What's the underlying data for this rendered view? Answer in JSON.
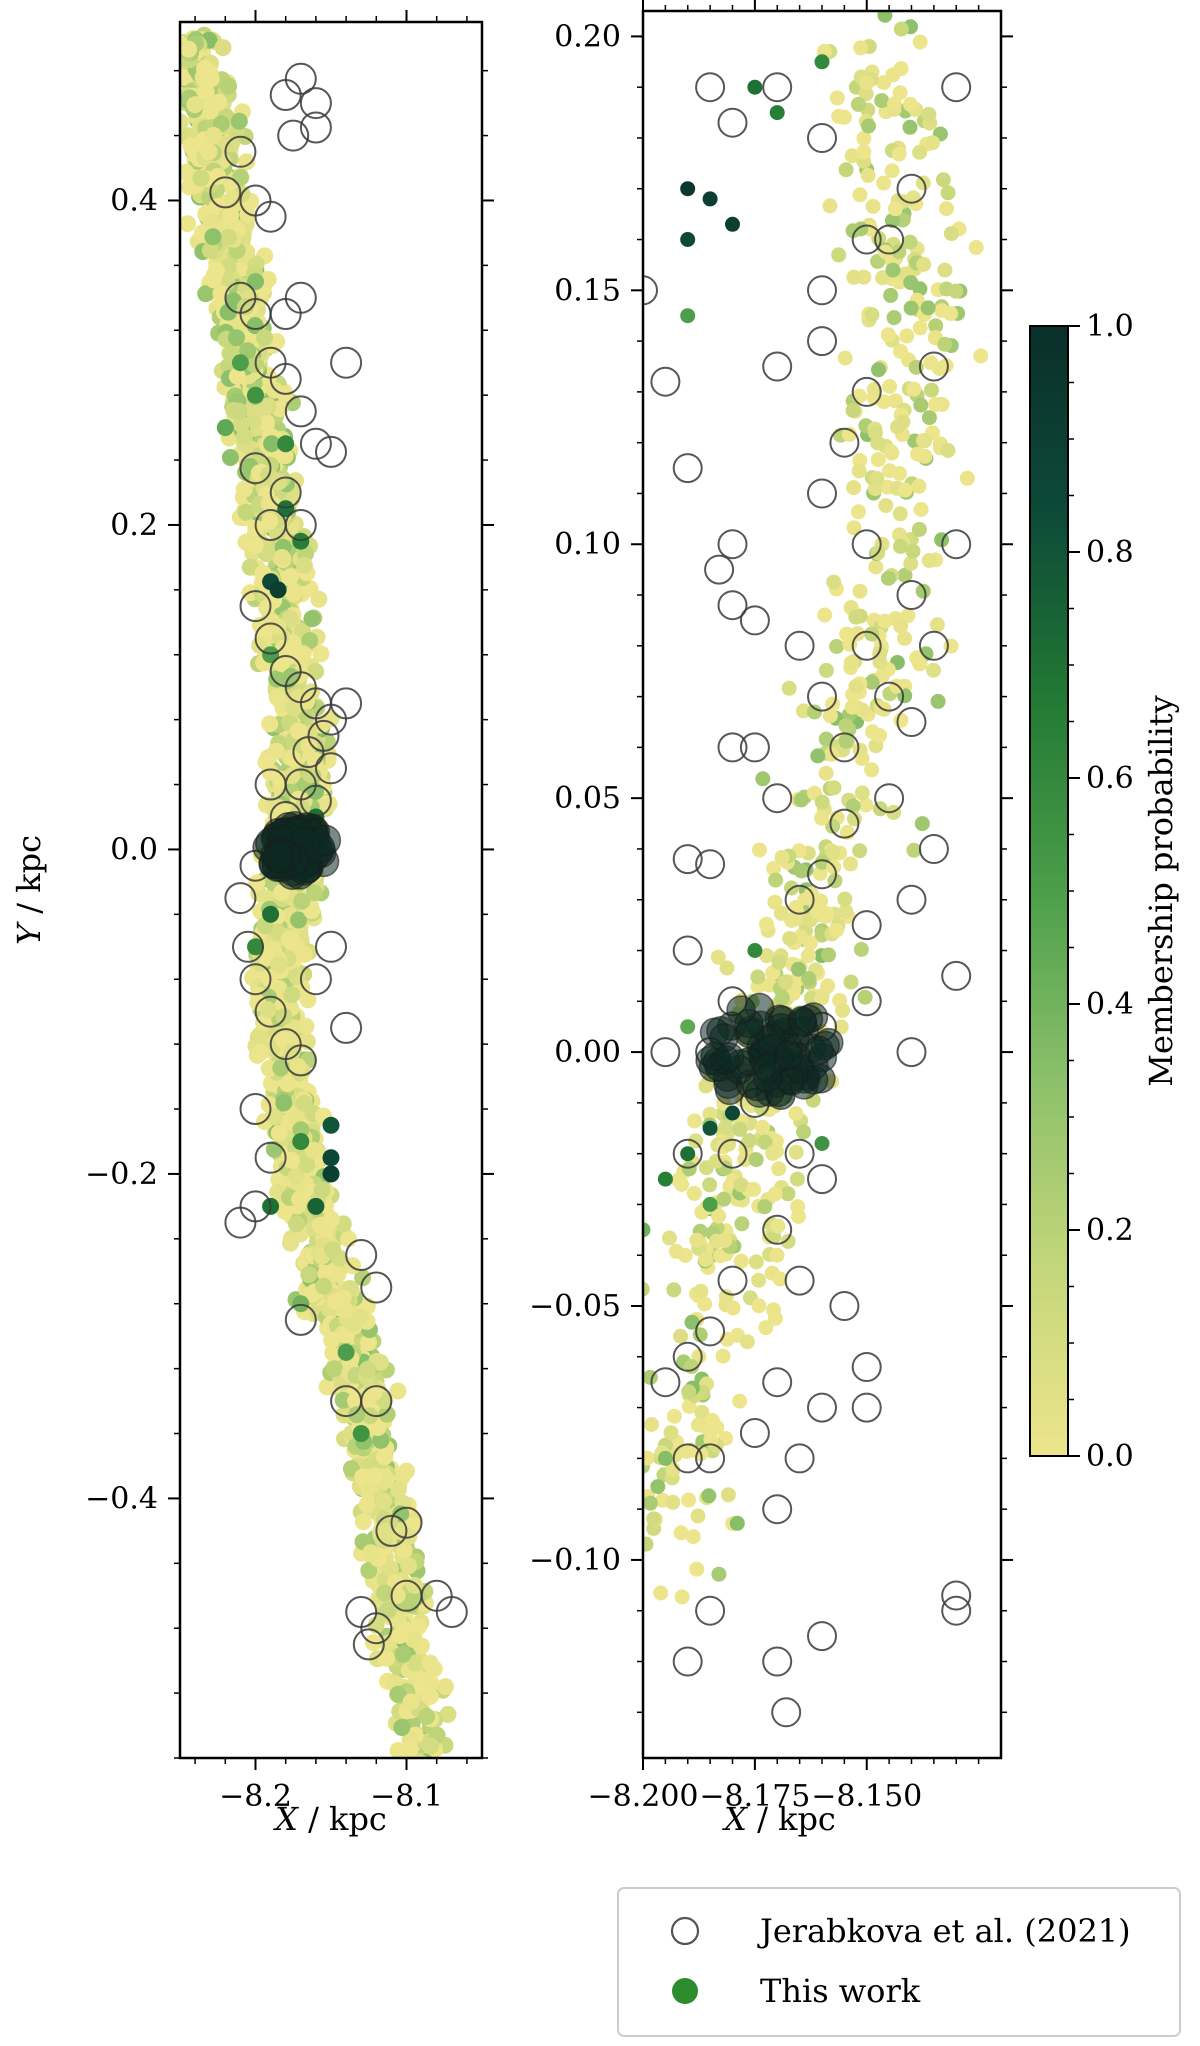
{
  "chart_data": [
    {
      "type": "scatter",
      "panel": "left",
      "xlabel_var": "X",
      "xlabel_unit": " / kpc",
      "ylabel_var": "Y",
      "ylabel_unit": " / kpc",
      "xlim": [
        -8.25,
        -8.05
      ],
      "ylim": [
        -0.56,
        0.51
      ],
      "xticks": [
        -8.2,
        -8.1
      ],
      "xtick_labels": [
        "−8.2",
        "−8.1"
      ],
      "yticks": [
        -0.4,
        -0.2,
        0.0,
        0.2,
        0.4
      ],
      "ytick_labels": [
        "−0.4",
        "−0.2",
        "0.0",
        "0.2",
        "0.4"
      ],
      "grid": false,
      "spine": [
        [
          -8.24,
          0.5
        ],
        [
          -8.22,
          0.38
        ],
        [
          -8.2,
          0.28
        ],
        [
          -8.185,
          0.18
        ],
        [
          -8.17,
          0.07
        ],
        [
          -8.175,
          0.0
        ],
        [
          -8.185,
          -0.08
        ],
        [
          -8.17,
          -0.2
        ],
        [
          -8.14,
          -0.3
        ],
        [
          -8.11,
          -0.42
        ],
        [
          -8.09,
          -0.56
        ]
      ],
      "series": [
        {
          "name": "Jerabkova et al. (2021)",
          "points": [
            [
              -8.17,
              0.475
            ],
            [
              -8.18,
              0.465
            ],
            [
              -8.16,
              0.46
            ],
            [
              -8.175,
              0.44
            ],
            [
              -8.16,
              0.445
            ],
            [
              -8.21,
              0.43
            ],
            [
              -8.22,
              0.405
            ],
            [
              -8.2,
              0.4
            ],
            [
              -8.19,
              0.39
            ],
            [
              -8.21,
              0.34
            ],
            [
              -8.2,
              0.33
            ],
            [
              -8.18,
              0.33
            ],
            [
              -8.17,
              0.34
            ],
            [
              -8.14,
              0.3
            ],
            [
              -8.19,
              0.3
            ],
            [
              -8.18,
              0.29
            ],
            [
              -8.17,
              0.27
            ],
            [
              -8.16,
              0.25
            ],
            [
              -8.15,
              0.245
            ],
            [
              -8.2,
              0.235
            ],
            [
              -8.18,
              0.22
            ],
            [
              -8.19,
              0.2
            ],
            [
              -8.17,
              0.2
            ],
            [
              -8.2,
              0.15
            ],
            [
              -8.19,
              0.13
            ],
            [
              -8.18,
              0.11
            ],
            [
              -8.17,
              0.1
            ],
            [
              -8.16,
              0.09
            ],
            [
              -8.15,
              0.08
            ],
            [
              -8.14,
              0.09
            ],
            [
              -8.155,
              0.07
            ],
            [
              -8.165,
              0.06
            ],
            [
              -8.15,
              0.05
            ],
            [
              -8.17,
              0.04
            ],
            [
              -8.16,
              0.03
            ],
            [
              -8.18,
              0.02
            ],
            [
              -8.19,
              0.04
            ],
            [
              -8.2,
              -0.01
            ],
            [
              -8.21,
              -0.03
            ],
            [
              -8.205,
              -0.06
            ],
            [
              -8.2,
              -0.08
            ],
            [
              -8.19,
              -0.1
            ],
            [
              -8.18,
              -0.12
            ],
            [
              -8.17,
              -0.13
            ],
            [
              -8.16,
              -0.08
            ],
            [
              -8.15,
              -0.06
            ],
            [
              -8.14,
              -0.11
            ],
            [
              -8.2,
              -0.16
            ],
            [
              -8.19,
              -0.19
            ],
            [
              -8.2,
              -0.22
            ],
            [
              -8.21,
              -0.23
            ],
            [
              -8.17,
              -0.29
            ],
            [
              -8.13,
              -0.25
            ],
            [
              -8.12,
              -0.27
            ],
            [
              -8.14,
              -0.34
            ],
            [
              -8.12,
              -0.34
            ],
            [
              -8.11,
              -0.42
            ],
            [
              -8.1,
              -0.415
            ],
            [
              -8.1,
              -0.46
            ],
            [
              -8.08,
              -0.46
            ],
            [
              -8.07,
              -0.47
            ],
            [
              -8.13,
              -0.47
            ],
            [
              -8.12,
              -0.48
            ],
            [
              -8.125,
              -0.49
            ]
          ]
        },
        {
          "name": "This work",
          "points": [
            [
              -8.22,
              0.26,
              0.45
            ],
            [
              -8.21,
              0.3,
              0.5
            ],
            [
              -8.2,
              0.28,
              0.55
            ],
            [
              -8.18,
              0.25,
              0.6
            ],
            [
              -8.18,
              0.21,
              0.7
            ],
            [
              -8.17,
              0.19,
              0.65
            ],
            [
              -8.19,
              0.165,
              0.85
            ],
            [
              -8.185,
              0.16,
              0.9
            ],
            [
              -8.175,
              0.0,
              0.95
            ],
            [
              -8.17,
              -0.01,
              0.9
            ],
            [
              -8.19,
              -0.04,
              0.7
            ],
            [
              -8.2,
              -0.06,
              0.6
            ],
            [
              -8.15,
              -0.17,
              0.8
            ],
            [
              -8.15,
              -0.19,
              0.85
            ],
            [
              -8.15,
              -0.2,
              0.9
            ],
            [
              -8.16,
              -0.22,
              0.75
            ],
            [
              -8.17,
              -0.18,
              0.6
            ],
            [
              -8.19,
              -0.22,
              0.7
            ],
            [
              -8.14,
              -0.31,
              0.5
            ],
            [
              -8.13,
              -0.36,
              0.55
            ],
            [
              -8.17,
              -0.28,
              0.4
            ],
            [
              -8.2,
              0.35,
              0.35
            ],
            [
              -8.19,
              0.12,
              0.5
            ],
            [
              -8.16,
              0.02,
              0.7
            ]
          ]
        }
      ]
    },
    {
      "type": "scatter",
      "panel": "right",
      "xlabel_var": "X",
      "xlabel_unit": " / kpc",
      "xlim": [
        -8.2,
        -8.12
      ],
      "ylim": [
        -0.139,
        0.205
      ],
      "xticks": [
        -8.2,
        -8.175,
        -8.15
      ],
      "xtick_labels": [
        "−8.200",
        "−8.175",
        "−8.150"
      ],
      "yticks": [
        -0.1,
        -0.05,
        0.0,
        0.05,
        0.1,
        0.15,
        0.2
      ],
      "ytick_labels": [
        "−0.10",
        "−0.05",
        "0.00",
        "0.05",
        "0.10",
        "0.15",
        "0.20"
      ],
      "grid": false,
      "spine": [
        [
          -8.195,
          -0.1
        ],
        [
          -8.18,
          -0.03
        ],
        [
          -8.17,
          0.0
        ],
        [
          -8.16,
          0.04
        ],
        [
          -8.145,
          0.09
        ],
        [
          -8.14,
          0.14
        ],
        [
          -8.15,
          0.2
        ]
      ],
      "series": [
        {
          "name": "Jerabkova et al. (2021)",
          "points": [
            [
              -8.17,
              0.19
            ],
            [
              -8.18,
              0.183
            ],
            [
              -8.185,
              0.19
            ],
            [
              -8.13,
              0.19
            ],
            [
              -8.16,
              0.18
            ],
            [
              -8.15,
              0.16
            ],
            [
              -8.14,
              0.17
            ],
            [
              -8.16,
              0.15
            ],
            [
              -8.145,
              0.16
            ],
            [
              -8.17,
              0.135
            ],
            [
              -8.16,
              0.14
            ],
            [
              -8.15,
              0.13
            ],
            [
              -8.155,
              0.12
            ],
            [
              -8.135,
              0.135
            ],
            [
              -8.2,
              0.15
            ],
            [
              -8.195,
              0.132
            ],
            [
              -8.19,
              0.115
            ],
            [
              -8.18,
              0.1
            ],
            [
              -8.183,
              0.095
            ],
            [
              -8.18,
              0.088
            ],
            [
              -8.16,
              0.11
            ],
            [
              -8.15,
              0.1
            ],
            [
              -8.14,
              0.09
            ],
            [
              -8.13,
              0.1
            ],
            [
              -8.135,
              0.08
            ],
            [
              -8.15,
              0.08
            ],
            [
              -8.16,
              0.07
            ],
            [
              -8.145,
              0.07
            ],
            [
              -8.155,
              0.06
            ],
            [
              -8.14,
              0.065
            ],
            [
              -8.145,
              0.05
            ],
            [
              -8.155,
              0.045
            ],
            [
              -8.16,
              0.035
            ],
            [
              -8.165,
              0.03
            ],
            [
              -8.15,
              0.025
            ],
            [
              -8.135,
              0.04
            ],
            [
              -8.14,
              0.03
            ],
            [
              -8.17,
              0.05
            ],
            [
              -8.175,
              0.06
            ],
            [
              -8.165,
              0.08
            ],
            [
              -8.175,
              0.085
            ],
            [
              -8.18,
              0.06
            ],
            [
              -8.19,
              0.038
            ],
            [
              -8.185,
              0.037
            ],
            [
              -8.19,
              0.02
            ],
            [
              -8.18,
              0.01
            ],
            [
              -8.185,
              0.0
            ],
            [
              -8.175,
              -0.01
            ],
            [
              -8.18,
              -0.02
            ],
            [
              -8.19,
              -0.02
            ],
            [
              -8.165,
              -0.02
            ],
            [
              -8.16,
              -0.025
            ],
            [
              -8.17,
              -0.035
            ],
            [
              -8.165,
              -0.045
            ],
            [
              -8.18,
              -0.045
            ],
            [
              -8.185,
              -0.055
            ],
            [
              -8.19,
              -0.06
            ],
            [
              -8.195,
              -0.065
            ],
            [
              -8.19,
              -0.08
            ],
            [
              -8.185,
              -0.08
            ],
            [
              -8.17,
              -0.065
            ],
            [
              -8.175,
              -0.075
            ],
            [
              -8.165,
              -0.08
            ],
            [
              -8.17,
              -0.09
            ],
            [
              -8.16,
              -0.07
            ],
            [
              -8.155,
              -0.05
            ],
            [
              -8.15,
              -0.07
            ],
            [
              -8.15,
              -0.062
            ],
            [
              -8.185,
              -0.11
            ],
            [
              -8.19,
              -0.12
            ],
            [
              -8.17,
              -0.12
            ],
            [
              -8.168,
              -0.13
            ],
            [
              -8.16,
              -0.115
            ],
            [
              -8.13,
              -0.11
            ],
            [
              -8.13,
              -0.107
            ],
            [
              -8.13,
              0.015
            ],
            [
              -8.14,
              0.0
            ],
            [
              -8.15,
              0.01
            ],
            [
              -8.16,
              0.005
            ],
            [
              -8.195,
              0.0
            ]
          ]
        },
        {
          "name": "This work",
          "points": [
            [
              -8.19,
              0.17,
              0.95
            ],
            [
              -8.185,
              0.168,
              0.9
            ],
            [
              -8.18,
              0.163,
              0.9
            ],
            [
              -8.19,
              0.16,
              0.85
            ],
            [
              -8.175,
              0.19,
              0.7
            ],
            [
              -8.17,
              0.185,
              0.65
            ],
            [
              -8.16,
              0.195,
              0.6
            ],
            [
              -8.19,
              0.145,
              0.5
            ],
            [
              -8.175,
              0.0,
              0.95
            ],
            [
              -8.17,
              -0.005,
              0.9
            ],
            [
              -8.18,
              -0.012,
              0.85
            ],
            [
              -8.185,
              -0.015,
              0.8
            ],
            [
              -8.19,
              -0.02,
              0.7
            ],
            [
              -8.195,
              -0.025,
              0.65
            ],
            [
              -8.175,
              0.02,
              0.6
            ],
            [
              -8.16,
              -0.018,
              0.55
            ],
            [
              -8.185,
              -0.03,
              0.5
            ],
            [
              -8.19,
              0.005,
              0.45
            ],
            [
              -8.2,
              -0.035,
              0.4
            ],
            [
              -8.195,
              -0.08,
              0.35
            ]
          ]
        }
      ]
    }
  ],
  "colorbar": {
    "label": "Membership probability",
    "range": [
      0.0,
      1.0
    ],
    "ticks": [
      0.0,
      0.2,
      0.4,
      0.6,
      0.8,
      1.0
    ],
    "tick_labels": [
      "0.0",
      "0.2",
      "0.4",
      "0.6",
      "0.8",
      "1.0"
    ],
    "colors": [
      "#ede58c",
      "#c4d67a",
      "#8cc06a",
      "#4c9e4a",
      "#237a34",
      "#0d4a38",
      "#0a2f2a"
    ]
  },
  "legend": {
    "placement": "bottom-right",
    "items": [
      {
        "name": "legend-jerabkova",
        "label": "Jerabkova et al. (2021)",
        "marker": "open-circle"
      },
      {
        "name": "legend-this-work",
        "label": "This work",
        "marker": "filled-circle"
      }
    ]
  }
}
